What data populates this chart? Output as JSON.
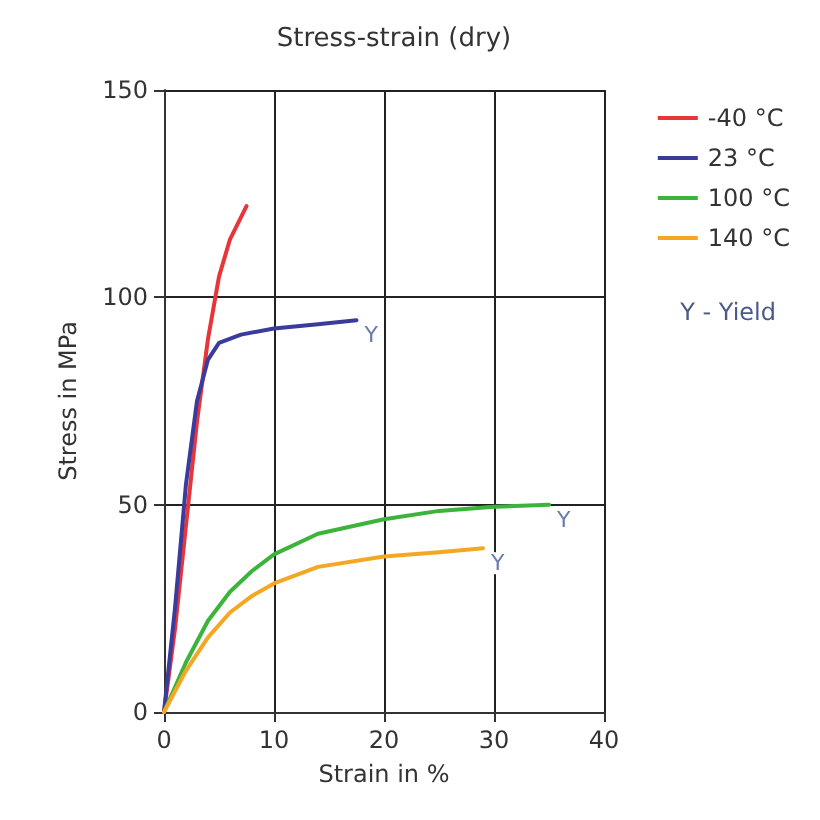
{
  "chart_data": {
    "type": "line",
    "title": "Stress-strain (dry)",
    "xlabel": "Strain in %",
    "ylabel": "Stress in MPa",
    "xlim": [
      0,
      40
    ],
    "xticks": [
      0,
      10,
      20,
      30,
      40
    ],
    "ylim": [
      0,
      150
    ],
    "yticks": [
      0,
      50,
      100,
      150
    ],
    "grid": true,
    "legend": "top right",
    "marker": "none",
    "line_style": "solid",
    "series": [
      {
        "name": "-40 °C",
        "color": "#e8353a",
        "x": [
          0,
          1,
          2,
          3,
          4,
          5,
          6,
          7.5
        ],
        "values": [
          0,
          20,
          45,
          70,
          90,
          105,
          114,
          122
        ]
      },
      {
        "name": "23 °C",
        "color": "#3b3b9c",
        "x": [
          0,
          1,
          2,
          3,
          4,
          5,
          7,
          10,
          14,
          17.5
        ],
        "values": [
          0,
          25,
          55,
          75,
          85,
          89,
          91,
          92.5,
          93.5,
          94.5
        ]
      },
      {
        "name": "100 °C",
        "color": "#3cb43c",
        "x": [
          0,
          2,
          4,
          6,
          8,
          10,
          14,
          20,
          25,
          30,
          35
        ],
        "values": [
          0,
          12,
          22,
          29,
          34,
          38,
          43,
          46.5,
          48.5,
          49.5,
          50
        ]
      },
      {
        "name": "140 °C",
        "color": "#f5a623",
        "x": [
          0,
          2,
          4,
          6,
          8,
          10,
          14,
          20,
          25,
          29
        ],
        "values": [
          0,
          10,
          18,
          24,
          28,
          31,
          35,
          37.5,
          38.5,
          39.5
        ]
      }
    ],
    "annotations": [
      {
        "text": "Y",
        "x": 17.5,
        "y": 94.5
      },
      {
        "text": "Y",
        "x": 35,
        "y": 50
      },
      {
        "text": "Y",
        "x": 29,
        "y": 39.5
      },
      "Y - Yield"
    ]
  }
}
